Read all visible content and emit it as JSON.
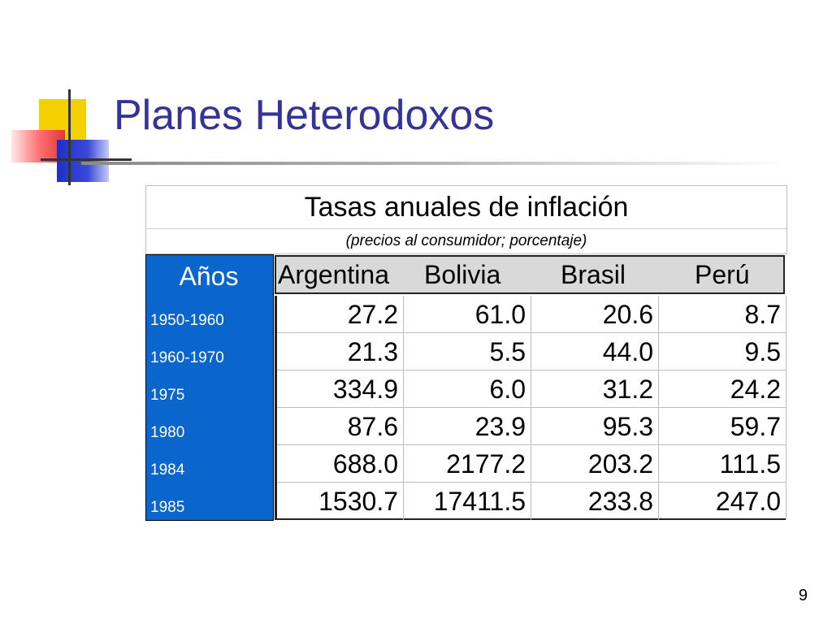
{
  "slide": {
    "title": "Planes Heterodoxos",
    "page_number": "9"
  },
  "table": {
    "heading": "Tasas anuales de inflación",
    "subheading": "(precios al consumidor; porcentaje)",
    "year_header": "Años",
    "columns": [
      "Argentina",
      "Bolivia",
      "Brasil",
      "Perú"
    ],
    "rows": [
      {
        "year": "1950-1960",
        "values": [
          "27.2",
          "61.0",
          "20.6",
          "8.7"
        ]
      },
      {
        "year": "1960-1970",
        "values": [
          "21.3",
          "5.5",
          "44.0",
          "9.5"
        ]
      },
      {
        "year": "1975",
        "values": [
          "334.9",
          "6.0",
          "31.2",
          "24.2"
        ]
      },
      {
        "year": "1980",
        "values": [
          "87.6",
          "23.9",
          "95.3",
          "59.7"
        ]
      },
      {
        "year": "1984",
        "values": [
          "688.0",
          "2177.2",
          "203.2",
          "111.5"
        ]
      },
      {
        "year": "1985",
        "values": [
          "1530.7",
          "17411.5",
          "233.8",
          "247.0"
        ]
      }
    ]
  },
  "colors": {
    "title": "#333399",
    "year_column": "#0a66cc",
    "header_row": "#d9d9d9"
  }
}
